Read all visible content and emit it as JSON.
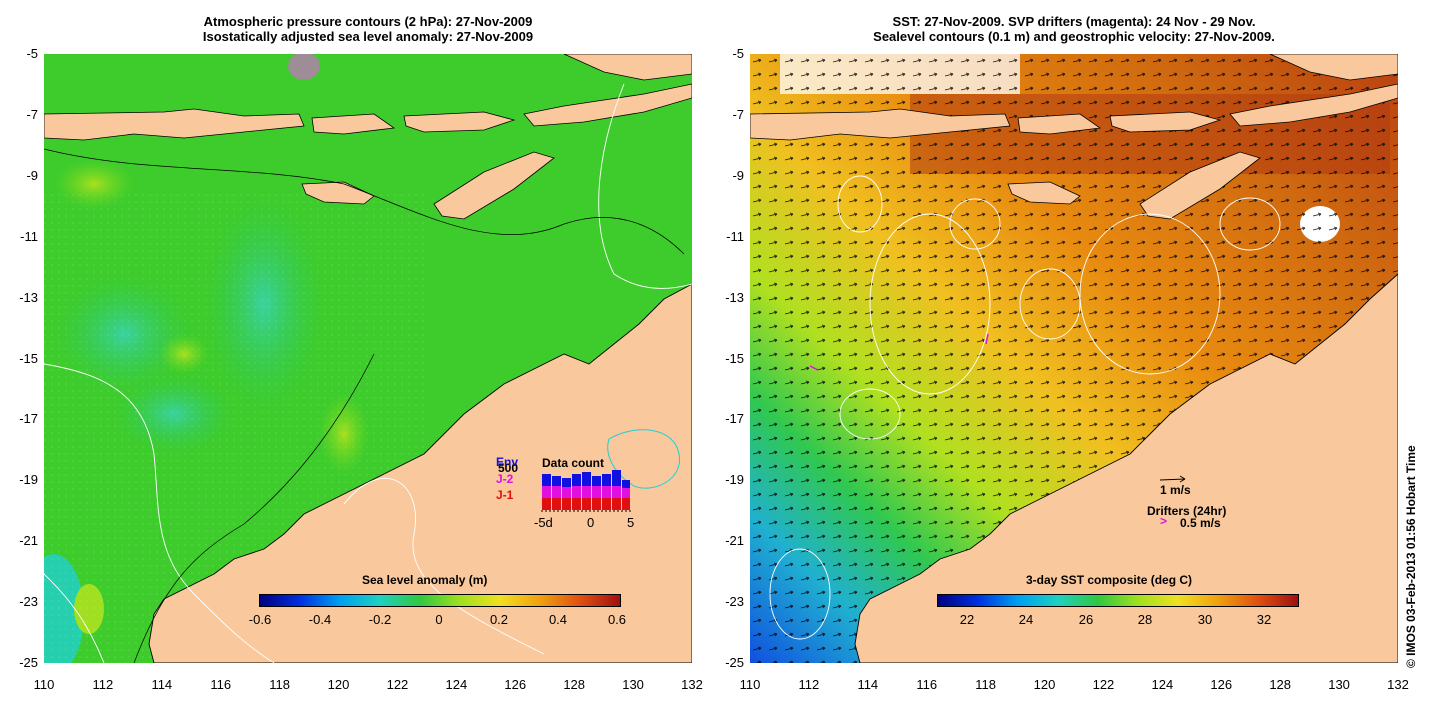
{
  "left_panel": {
    "title_line1": "Atmospheric pressure contours (2 hPa): 27-Nov-2009",
    "title_line2": "Isostatically adjusted sea level anomaly: 27-Nov-2009",
    "colorbar_title": "Sea level anomaly (m)",
    "colorbar_ticks": [
      "-0.6",
      "-0.4",
      "-0.2",
      "0",
      "0.2",
      "0.4",
      "0.6"
    ],
    "data_count": {
      "title": "Data count",
      "ymax_label": "500",
      "legend": [
        "Env",
        "J-2",
        "J-1"
      ],
      "legend_colors": [
        "#1010e0",
        "#e010e0",
        "#e01010"
      ],
      "x_ticks": [
        "-5d",
        "0",
        "5"
      ]
    }
  },
  "right_panel": {
    "title_line1": "SST: 27-Nov-2009. SVP drifters (magenta): 24 Nov - 29 Nov.",
    "title_line2": "Sealevel contours (0.1 m) and geostrophic velocity: 27-Nov-2009.",
    "colorbar_title": "3-day SST composite (deg C)",
    "colorbar_ticks": [
      "22",
      "24",
      "26",
      "28",
      "30",
      "32"
    ],
    "velocity_scale": "1 m/s",
    "drifters_label": "Drifters (24hr)",
    "drifter_speed": "0.5 m/s",
    "drifter_symbol": ">"
  },
  "axes": {
    "lat_ticks": [
      "-5",
      "-7",
      "-9",
      "-11",
      "-13",
      "-15",
      "-17",
      "-19",
      "-21",
      "-23",
      "-25"
    ],
    "lon_ticks": [
      "110",
      "112",
      "114",
      "116",
      "118",
      "120",
      "122",
      "124",
      "126",
      "128",
      "130",
      "132"
    ]
  },
  "credit": "© IMOS 03-Feb-2013 01:56 Hobart Time",
  "colors": {
    "land": "#f9c89c",
    "sea_green": "#22c822",
    "coast": "#000000"
  }
}
